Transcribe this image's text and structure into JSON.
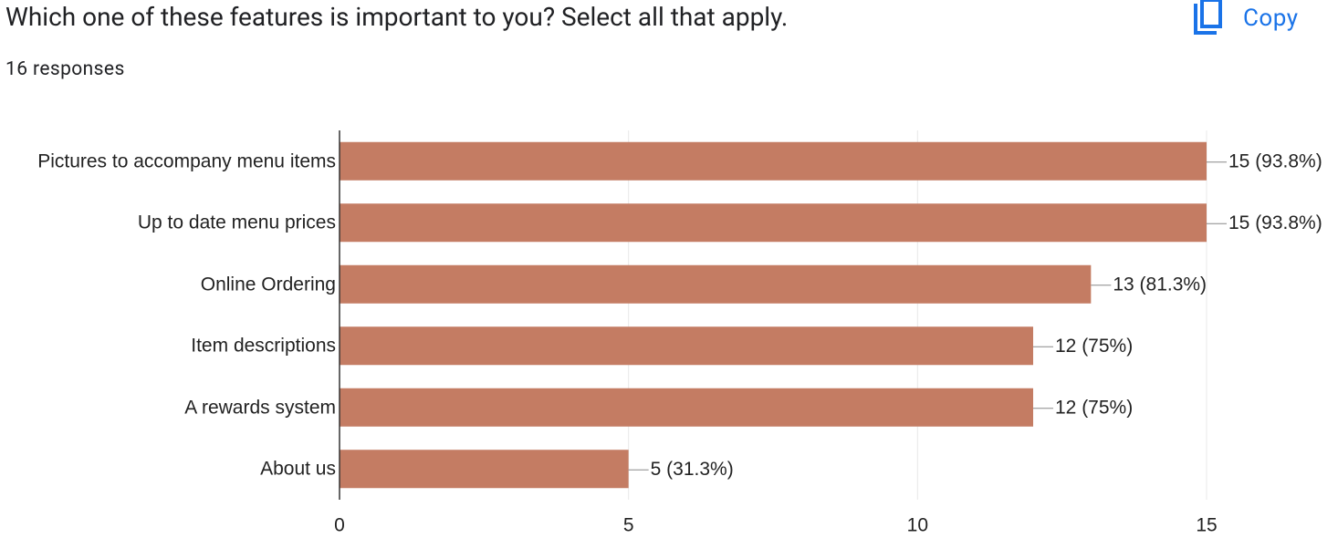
{
  "header": {
    "title": "Which one of these features is important to you? Select all that apply.",
    "responses": "16 responses",
    "copy": "Copy"
  },
  "chart_data": {
    "type": "hbar",
    "categories": [
      "Pictures to accompany menu items",
      "Up to date menu prices",
      "Online Ordering",
      "Item descriptions",
      "A rewards system",
      "About us"
    ],
    "values": [
      15,
      15,
      13,
      12,
      12,
      5
    ],
    "value_labels": [
      "15 (93.8%)",
      "15 (93.8%)",
      "13 (81.3%)",
      "12 (75%)",
      "12 (75%)",
      "5 (31.3%)"
    ],
    "color": "#c47c63",
    "xlim": [
      0,
      15
    ],
    "xticks": [
      0,
      5,
      10,
      15
    ],
    "grid": true
  }
}
